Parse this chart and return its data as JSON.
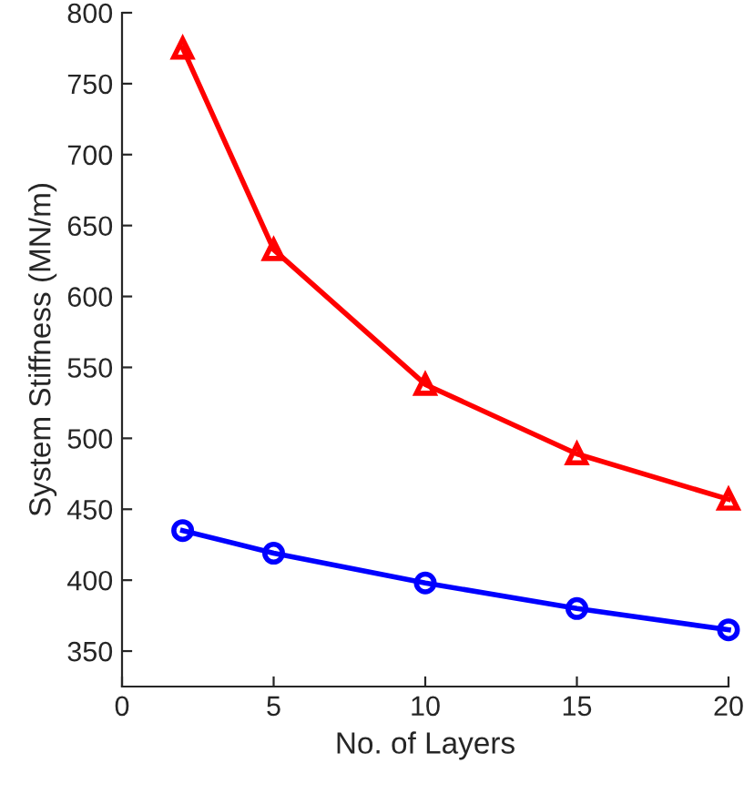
{
  "chart_data": {
    "type": "line",
    "xlabel": "No. of Layers",
    "ylabel": "System Stiffness (MN/m)",
    "x": [
      2,
      5,
      10,
      15,
      20
    ],
    "series": [
      {
        "color": "#ff0000",
        "marker": "triangle",
        "values": [
          775,
          633,
          538,
          489,
          457
        ]
      },
      {
        "color": "#0000ff",
        "marker": "circle",
        "values": [
          435,
          419,
          398,
          380,
          365
        ]
      }
    ],
    "xlim": [
      0,
      20
    ],
    "xticks": [
      0,
      5,
      10,
      15,
      20
    ],
    "ylim": [
      325,
      800
    ],
    "yticks": [
      350,
      400,
      450,
      500,
      550,
      600,
      650,
      700,
      750,
      800
    ],
    "grid": false,
    "line_style": "solid"
  }
}
